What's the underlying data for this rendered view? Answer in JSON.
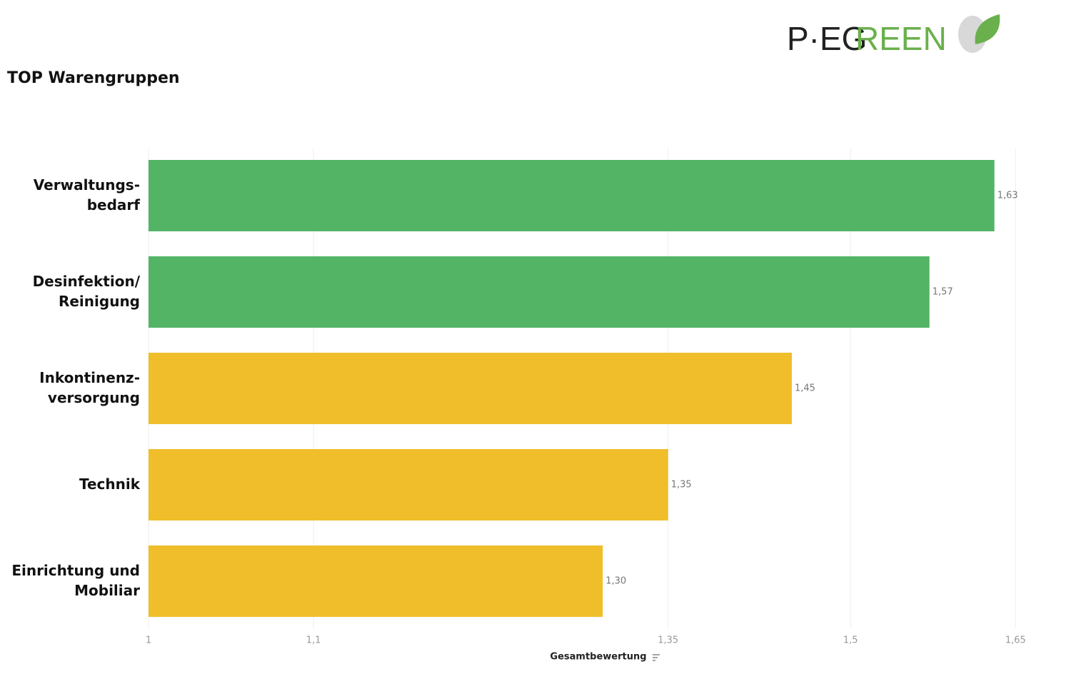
{
  "logo": {
    "dark": "P·EG",
    "green": "REEN"
  },
  "chart_data": {
    "type": "hbar",
    "title": "TOP Warengruppen",
    "x_label": "Gesamtbewertung",
    "categories": [
      [
        "Verwaltungs-",
        "bedarf"
      ],
      [
        "Desinfektion/",
        "Reinigung"
      ],
      [
        "Inkontinenz-",
        "versorgung"
      ],
      [
        "Technik"
      ],
      [
        "Einrichtung und",
        "Mobiliar"
      ]
    ],
    "values": [
      1.63,
      1.57,
      1.45,
      1.35,
      1.3
    ],
    "value_labels": [
      "1,63",
      "1,57",
      "1,45",
      "1,35",
      "1,30"
    ],
    "colors": [
      "#53b466",
      "#53b466",
      "#efbe2a",
      "#efbe2a",
      "#efbe2a"
    ],
    "xscale": "log",
    "xlim": [
      1,
      1.68
    ],
    "xticks": [
      1,
      {
        "value": 1.1,
        "label": "1,1"
      },
      {
        "value": 1.35,
        "label": "1,35"
      },
      {
        "value": 1.5,
        "label": "1,5"
      },
      {
        "value": 1.65,
        "label": "1,65"
      }
    ],
    "grid": true
  }
}
